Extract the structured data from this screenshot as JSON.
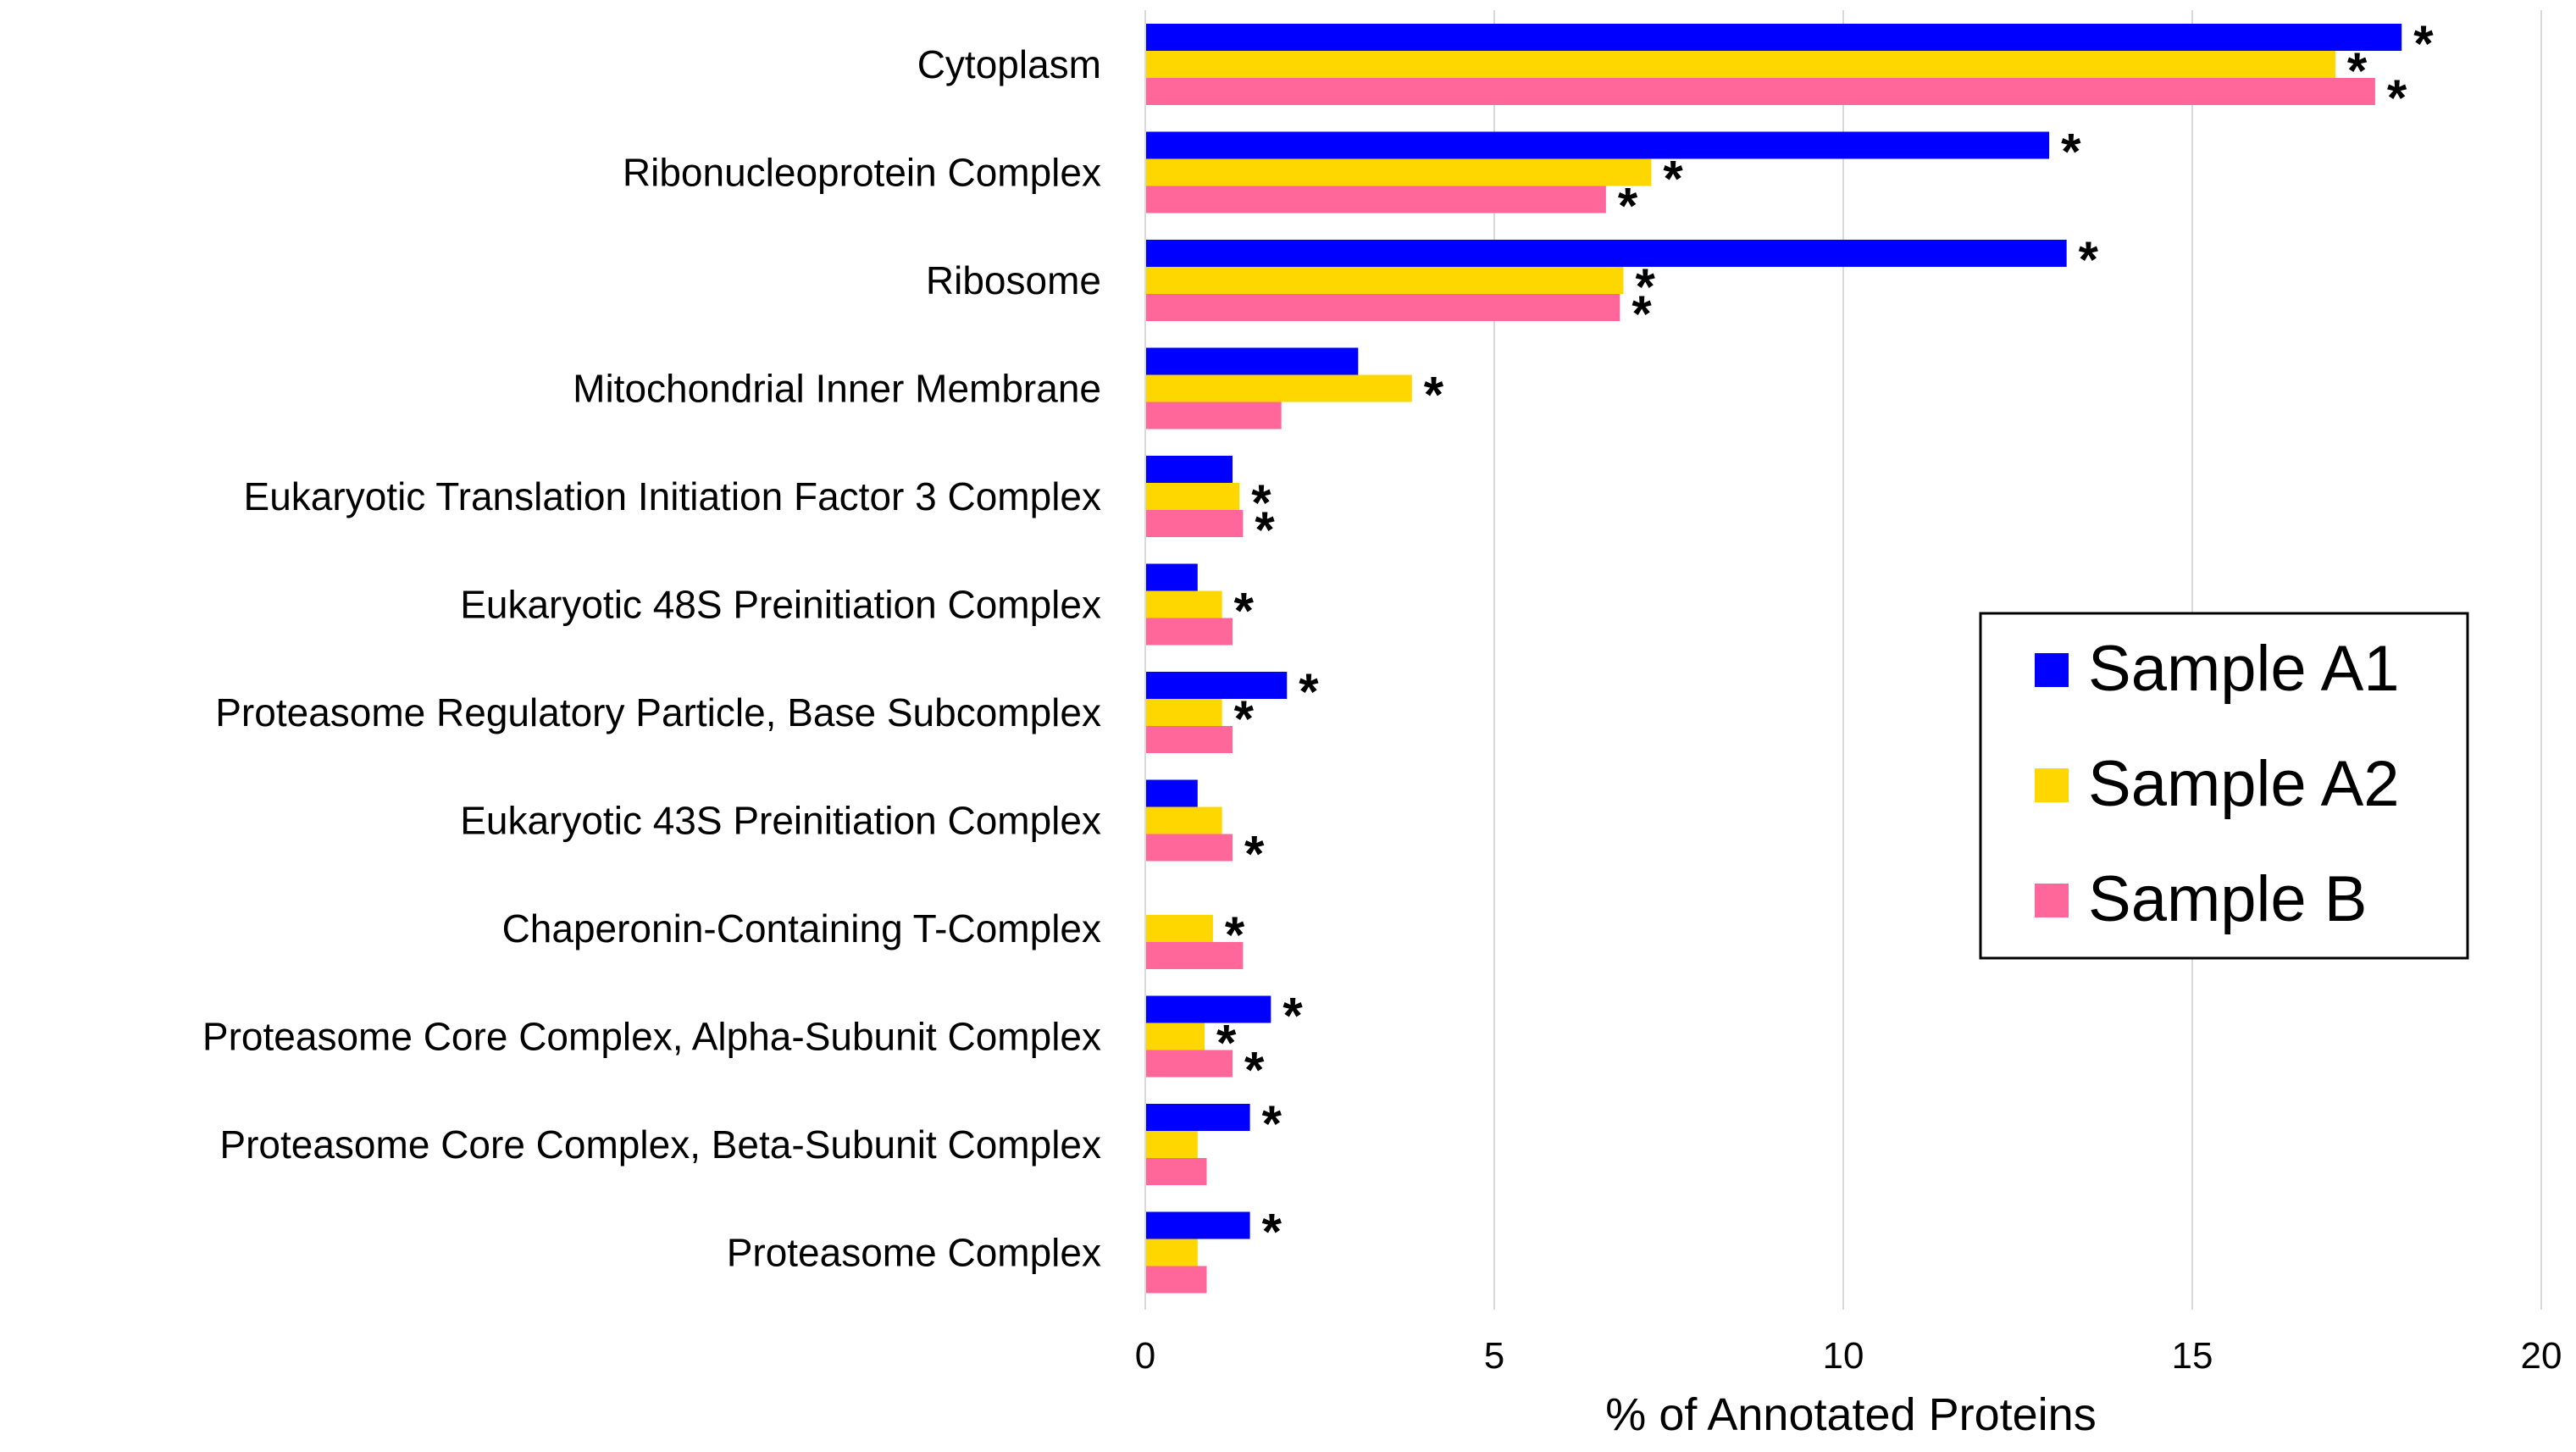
{
  "chart_data": {
    "type": "bar",
    "orientation": "horizontal",
    "title": "",
    "xlabel": "% of Annotated Proteins",
    "ylabel": "",
    "xlim": [
      0,
      20
    ],
    "xticks": [
      0,
      5,
      10,
      15,
      20
    ],
    "grid": true,
    "legend_position": "right",
    "categories": [
      "Cytoplasm",
      "Ribonucleoprotein Complex",
      "Ribosome",
      "Mitochondrial Inner Membrane",
      "Eukaryotic Translation Initiation Factor 3 Complex",
      "Eukaryotic 48S Preinitiation Complex",
      "Proteasome Regulatory Particle, Base Subcomplex",
      "Eukaryotic 43S Preinitiation Complex",
      "Chaperonin-Containing T-Complex",
      "Proteasome Core Complex, Alpha-Subunit Complex",
      "Proteasome Core Complex, Beta-Subunit Complex",
      "Proteasome Complex"
    ],
    "series": [
      {
        "name": "Sample A1",
        "color": "#0000ff",
        "values": [
          18.0,
          12.95,
          13.2,
          3.05,
          1.25,
          0.75,
          2.03,
          0.75,
          0,
          1.8,
          1.5,
          1.5
        ],
        "significant": [
          true,
          true,
          true,
          false,
          false,
          false,
          true,
          false,
          false,
          true,
          true,
          true
        ]
      },
      {
        "name": "Sample A2",
        "color": "#ffd700",
        "values": [
          17.05,
          7.25,
          6.85,
          3.82,
          1.35,
          1.1,
          1.1,
          1.1,
          0.97,
          0.85,
          0.75,
          0.75
        ],
        "significant": [
          true,
          true,
          true,
          true,
          true,
          true,
          true,
          false,
          true,
          true,
          false,
          false
        ]
      },
      {
        "name": "Sample B",
        "color": "#ff6699",
        "values": [
          17.62,
          6.6,
          6.8,
          1.95,
          1.4,
          1.25,
          1.25,
          1.25,
          1.4,
          1.25,
          0.88,
          0.88
        ],
        "significant": [
          true,
          true,
          true,
          false,
          true,
          false,
          false,
          true,
          false,
          true,
          false,
          false
        ]
      }
    ],
    "significance_marker": "*"
  }
}
